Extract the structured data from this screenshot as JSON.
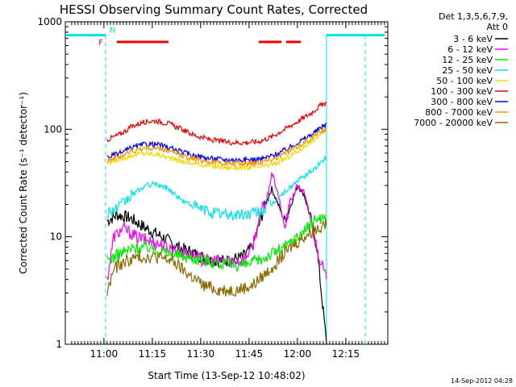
{
  "chart_data": {
    "type": "line",
    "title": "HESSI Observing Summary Count Rates, Corrected",
    "xlabel": "Start Time (13-Sep-12 10:48:02)",
    "ylabel": "Corrected Count Rate (s⁻¹ detector⁻¹)",
    "y_scale": "log",
    "ylim": [
      1,
      1000
    ],
    "xlim_minutes_after_start": [
      0,
      100
    ],
    "x_ticks": [
      {
        "label": "11:00",
        "t": 11.97
      },
      {
        "label": "11:15",
        "t": 26.97
      },
      {
        "label": "11:30",
        "t": 41.97
      },
      {
        "label": "11:45",
        "t": 56.97
      },
      {
        "label": "12:00",
        "t": 71.97
      },
      {
        "label": "12:15",
        "t": 86.97
      }
    ],
    "y_ticks": [
      {
        "label": "1",
        "v": 1
      },
      {
        "label": "10",
        "v": 10
      },
      {
        "label": "100",
        "v": 100
      },
      {
        "label": "1000",
        "v": 1000
      }
    ],
    "legend": {
      "header_line1": "Det 1,3,5,6,7,9,",
      "header_line2": "Att 0",
      "placement": "right"
    },
    "series": [
      {
        "name": "3 - 6 keV",
        "color": "#000000",
        "points": [
          [
            13,
            14
          ],
          [
            16,
            16
          ],
          [
            20,
            15
          ],
          [
            25,
            12
          ],
          [
            30,
            10
          ],
          [
            35,
            8
          ],
          [
            40,
            7
          ],
          [
            45,
            6
          ],
          [
            50,
            6
          ],
          [
            55,
            6.5
          ],
          [
            58,
            8
          ],
          [
            62,
            20
          ],
          [
            64,
            28
          ],
          [
            66,
            20
          ],
          [
            68,
            14
          ],
          [
            70,
            20
          ],
          [
            72,
            30
          ],
          [
            74,
            25
          ],
          [
            76,
            15
          ],
          [
            78,
            8
          ],
          [
            80,
            2
          ],
          [
            81,
            1
          ]
        ]
      },
      {
        "name": "6 - 12 keV",
        "color": "#ff00ff",
        "points": [
          [
            13,
            4
          ],
          [
            15,
            10
          ],
          [
            18,
            12
          ],
          [
            22,
            10
          ],
          [
            27,
            9
          ],
          [
            32,
            8
          ],
          [
            38,
            7
          ],
          [
            43,
            6
          ],
          [
            50,
            6
          ],
          [
            55,
            6
          ],
          [
            58,
            8
          ],
          [
            61,
            18
          ],
          [
            63,
            25
          ],
          [
            64,
            40
          ],
          [
            66,
            25
          ],
          [
            68,
            12
          ],
          [
            70,
            22
          ],
          [
            72,
            30
          ],
          [
            74,
            26
          ],
          [
            76,
            15
          ],
          [
            78,
            8
          ],
          [
            80,
            5
          ],
          [
            81,
            4
          ]
        ]
      },
      {
        "name": "12 - 25 keV",
        "color": "#00ee00",
        "points": [
          [
            13,
            6
          ],
          [
            17,
            7
          ],
          [
            22,
            8
          ],
          [
            27,
            8
          ],
          [
            32,
            7
          ],
          [
            38,
            6.5
          ],
          [
            44,
            6
          ],
          [
            50,
            5.5
          ],
          [
            56,
            5.5
          ],
          [
            60,
            6
          ],
          [
            64,
            7
          ],
          [
            68,
            8
          ],
          [
            72,
            10
          ],
          [
            76,
            13
          ],
          [
            78,
            15
          ],
          [
            80,
            15
          ],
          [
            81,
            14
          ]
        ]
      },
      {
        "name": "25 - 50 keV",
        "color": "#00e5ee",
        "points": [
          [
            13,
            17
          ],
          [
            17,
            19
          ],
          [
            21,
            25
          ],
          [
            25,
            30
          ],
          [
            28,
            31
          ],
          [
            32,
            28
          ],
          [
            36,
            22
          ],
          [
            40,
            19
          ],
          [
            45,
            17
          ],
          [
            50,
            16
          ],
          [
            55,
            16
          ],
          [
            60,
            17
          ],
          [
            64,
            20
          ],
          [
            68,
            26
          ],
          [
            72,
            33
          ],
          [
            76,
            40
          ],
          [
            79,
            48
          ],
          [
            81,
            55
          ]
        ]
      },
      {
        "name": "50 - 100 keV",
        "color": "#eedd00",
        "points": [
          [
            13,
            48
          ],
          [
            17,
            53
          ],
          [
            21,
            58
          ],
          [
            25,
            60
          ],
          [
            29,
            58
          ],
          [
            33,
            53
          ],
          [
            38,
            49
          ],
          [
            44,
            46
          ],
          [
            50,
            44
          ],
          [
            56,
            44
          ],
          [
            61,
            45
          ],
          [
            65,
            48
          ],
          [
            69,
            55
          ],
          [
            73,
            65
          ],
          [
            77,
            80
          ],
          [
            80,
            95
          ],
          [
            81,
            100
          ]
        ]
      },
      {
        "name": "100 - 300 keV",
        "color": "#ee0000",
        "points": [
          [
            13,
            80
          ],
          [
            17,
            90
          ],
          [
            21,
            108
          ],
          [
            25,
            118
          ],
          [
            28,
            120
          ],
          [
            32,
            113
          ],
          [
            36,
            100
          ],
          [
            40,
            88
          ],
          [
            45,
            80
          ],
          [
            50,
            76
          ],
          [
            55,
            75
          ],
          [
            60,
            77
          ],
          [
            64,
            85
          ],
          [
            68,
            100
          ],
          [
            72,
            118
          ],
          [
            76,
            140
          ],
          [
            79,
            165
          ],
          [
            81,
            180
          ]
        ]
      },
      {
        "name": "300 - 800 keV",
        "color": "#0000ee",
        "points": [
          [
            13,
            55
          ],
          [
            17,
            60
          ],
          [
            21,
            68
          ],
          [
            25,
            73
          ],
          [
            29,
            72
          ],
          [
            33,
            66
          ],
          [
            38,
            59
          ],
          [
            44,
            54
          ],
          [
            50,
            52
          ],
          [
            56,
            52
          ],
          [
            61,
            53
          ],
          [
            65,
            58
          ],
          [
            69,
            66
          ],
          [
            73,
            78
          ],
          [
            77,
            92
          ],
          [
            80,
            108
          ],
          [
            81,
            113
          ]
        ]
      },
      {
        "name": "800 - 7000 keV",
        "color": "#ff9000",
        "points": [
          [
            13,
            52
          ],
          [
            17,
            56
          ],
          [
            21,
            63
          ],
          [
            25,
            67
          ],
          [
            29,
            66
          ],
          [
            33,
            61
          ],
          [
            38,
            55
          ],
          [
            44,
            50
          ],
          [
            50,
            48
          ],
          [
            56,
            48
          ],
          [
            61,
            50
          ],
          [
            65,
            54
          ],
          [
            69,
            61
          ],
          [
            73,
            72
          ],
          [
            77,
            86
          ],
          [
            80,
            98
          ],
          [
            81,
            100
          ]
        ]
      },
      {
        "name": "7000 - 20000 keV",
        "color": "#8b6b00",
        "points": [
          [
            13,
            3
          ],
          [
            15,
            5
          ],
          [
            19,
            6
          ],
          [
            23,
            6.5
          ],
          [
            28,
            6.5
          ],
          [
            33,
            6
          ],
          [
            38,
            4.5
          ],
          [
            43,
            3.5
          ],
          [
            48,
            3.2
          ],
          [
            53,
            3.2
          ],
          [
            58,
            3.5
          ],
          [
            62,
            4.5
          ],
          [
            66,
            6
          ],
          [
            70,
            8
          ],
          [
            74,
            10
          ],
          [
            78,
            12
          ],
          [
            80,
            13
          ],
          [
            81,
            13
          ]
        ]
      }
    ],
    "flag_markers": [
      {
        "label": "F",
        "color": "#ee0000"
      },
      {
        "label": "N",
        "color": "#00e5ee"
      }
    ],
    "footer_timestamp": "14-Sep-2012 04:28"
  }
}
